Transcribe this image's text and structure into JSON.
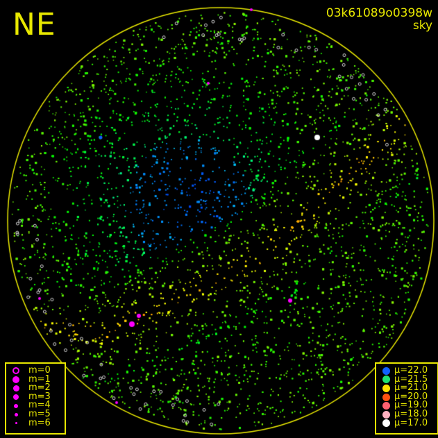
{
  "direction_label": "NE",
  "image_id": "03k61089o0398w",
  "image_type": "sky",
  "colors": {
    "horizon_circle": "#e8e800",
    "text": "#e8e800",
    "background": "#000000"
  },
  "magnitude_legend": {
    "color": "#ff00ff",
    "items": [
      {
        "label": "m=0",
        "style": "ring"
      },
      {
        "label": "m=1",
        "style": "filled"
      },
      {
        "label": "m=2",
        "style": "filled"
      },
      {
        "label": "m=3",
        "style": "filled"
      },
      {
        "label": "m=4",
        "style": "filled"
      },
      {
        "label": "m=5",
        "style": "filled"
      },
      {
        "label": "m=6",
        "style": "filled"
      }
    ]
  },
  "brightness_legend": {
    "items": [
      {
        "label": "μ=22.0",
        "color": "#1060ff"
      },
      {
        "label": "μ=21.5",
        "color": "#20e070"
      },
      {
        "label": "μ=21.0",
        "color": "#ffe000"
      },
      {
        "label": "μ=20.0",
        "color": "#ff5010"
      },
      {
        "label": "μ=19.0",
        "color": "#ff6070"
      },
      {
        "label": "μ=18.0",
        "color": "#ffb0c0"
      },
      {
        "label": "μ=17.0",
        "color": "#ffffff"
      }
    ]
  }
}
